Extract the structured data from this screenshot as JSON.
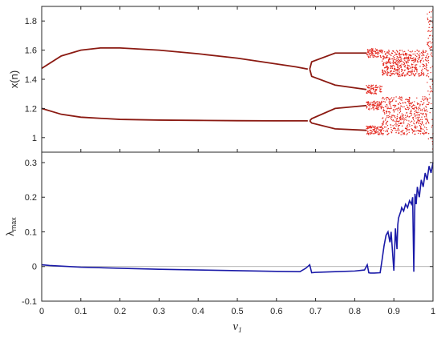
{
  "chart_data": [
    {
      "type": "scatter",
      "panel": "bifurcation",
      "xlim": [
        0,
        1
      ],
      "ylim": [
        0.9,
        1.9
      ],
      "ylabel": "x(n)",
      "y_ticks": [
        "1",
        "1.2",
        "1.4",
        "1.6",
        "1.8"
      ],
      "y_tick_values": [
        1.0,
        1.2,
        1.4,
        1.6,
        1.8
      ],
      "marker_color": "#e3241b",
      "branch_color": "#8b1a12",
      "branches": {
        "upper_period2": {
          "v1": [
            0.0,
            0.05,
            0.1,
            0.15,
            0.2,
            0.3,
            0.4,
            0.5,
            0.6,
            0.65,
            0.68
          ],
          "x": [
            1.475,
            1.56,
            1.6,
            1.615,
            1.615,
            1.6,
            1.575,
            1.545,
            1.505,
            1.485,
            1.47
          ]
        },
        "lower_period2": {
          "v1": [
            0.0,
            0.05,
            0.1,
            0.2,
            0.3,
            0.4,
            0.5,
            0.6,
            0.68
          ],
          "x": [
            1.2,
            1.16,
            1.14,
            1.125,
            1.12,
            1.118,
            1.116,
            1.115,
            1.115
          ]
        },
        "period4_split_v1": 0.685,
        "period4_values": {
          "v1": [
            0.69,
            0.75,
            0.83
          ],
          "upper_a": [
            1.52,
            1.58,
            1.58
          ],
          "upper_b": [
            1.42,
            1.36,
            1.33
          ],
          "lower_a": [
            1.13,
            1.2,
            1.22
          ],
          "lower_b": [
            1.1,
            1.06,
            1.05
          ]
        },
        "chaos_onset_v1": 0.87
      }
    },
    {
      "type": "line",
      "panel": "lyapunov",
      "xlim": [
        0,
        1
      ],
      "ylim": [
        -0.1,
        0.33
      ],
      "xlabel": "v",
      "xlabel_sub": "1",
      "ylabel": "λ",
      "ylabel_sub": "max",
      "x_ticks": [
        "0",
        "0.1",
        "0.2",
        "0.3",
        "0.4",
        "0.5",
        "0.6",
        "0.7",
        "0.8",
        "0.9",
        "1"
      ],
      "x_tick_values": [
        0,
        0.1,
        0.2,
        0.3,
        0.4,
        0.5,
        0.6,
        0.7,
        0.8,
        0.9,
        1.0
      ],
      "y_ticks": [
        "-0.1",
        "0",
        "0.1",
        "0.2",
        "0.3"
      ],
      "y_tick_values": [
        -0.1,
        0,
        0.1,
        0.2,
        0.3
      ],
      "zero_line": true,
      "line_color": "#1a1aa8",
      "series": [
        {
          "x": [
            0,
            0.02,
            0.1,
            0.2,
            0.3,
            0.4,
            0.5,
            0.6,
            0.66,
            0.675,
            0.685,
            0.69,
            0.7,
            0.75,
            0.8,
            0.825,
            0.832,
            0.836,
            0.84,
            0.85,
            0.865,
            0.87,
            0.875,
            0.88,
            0.885,
            0.89,
            0.893,
            0.9,
            0.904,
            0.908,
            0.91,
            0.912,
            0.915,
            0.918,
            0.92,
            0.925,
            0.93,
            0.935,
            0.94,
            0.945,
            0.948,
            0.951,
            0.954,
            0.957,
            0.96,
            0.965,
            0.97,
            0.975,
            0.98,
            0.985,
            0.99,
            0.995,
            1.0
          ],
          "y": [
            0.005,
            0.003,
            -0.002,
            -0.005,
            -0.008,
            -0.01,
            -0.012,
            -0.014,
            -0.015,
            -0.005,
            0.005,
            -0.018,
            -0.017,
            -0.015,
            -0.013,
            -0.01,
            0.005,
            -0.018,
            -0.019,
            -0.019,
            -0.018,
            0.02,
            0.06,
            0.09,
            0.1,
            0.07,
            0.1,
            -0.012,
            0.11,
            0.05,
            0.12,
            0.14,
            0.15,
            0.16,
            0.17,
            0.16,
            0.18,
            0.17,
            0.19,
            0.18,
            0.2,
            -0.015,
            0.21,
            0.18,
            0.23,
            0.2,
            0.25,
            0.23,
            0.27,
            0.25,
            0.29,
            0.27,
            0.3
          ]
        }
      ]
    }
  ]
}
